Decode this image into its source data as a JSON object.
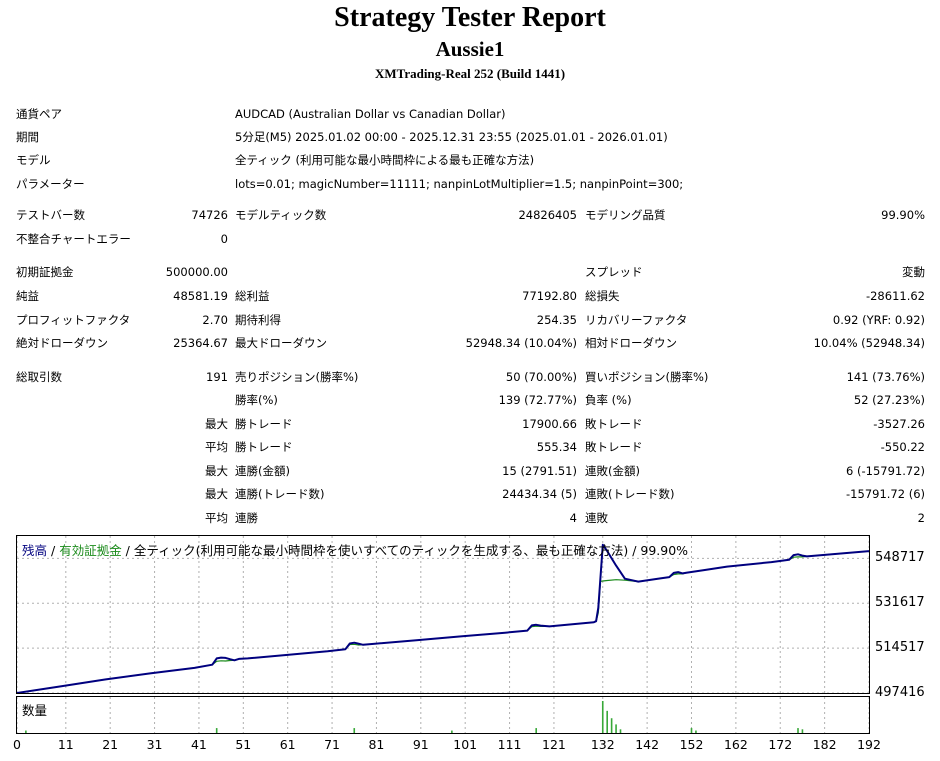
{
  "header": {
    "title": "Strategy Tester Report",
    "ea": "Aussie1",
    "server": "XMTrading-Real 252 (Build 1441)"
  },
  "info": [
    {
      "label": "通貨ペア",
      "value": "AUDCAD (Australian Dollar vs Canadian Dollar)"
    },
    {
      "label": "期間",
      "value": "5分足(M5) 2025.01.02 00:00 - 2025.12.31 23:55 (2025.01.01 - 2026.01.01)"
    },
    {
      "label": "モデル",
      "value": "全ティック (利用可能な最小時間枠による最も正確な方法)"
    },
    {
      "label": "パラメーター",
      "value": "lots=0.01; magicNumber=11111; nanpinLotMultiplier=1.5; nanpinPoint=300;"
    }
  ],
  "stats": {
    "bars_label": "テストバー数",
    "bars": "74726",
    "ticks_label": "モデルティック数",
    "ticks": "24826405",
    "quality_label": "モデリング品質",
    "quality": "99.90%",
    "mismatch_label": "不整合チャートエラー",
    "mismatch": "0",
    "deposit_label": "初期証拠金",
    "deposit": "500000.00",
    "spread_label": "スプレッド",
    "spread": "変動",
    "net_label": "純益",
    "net": "48581.19",
    "gross_profit_label": "総利益",
    "gross_profit": "77192.80",
    "gross_loss_label": "総損失",
    "gross_loss": "-28611.62",
    "pf_label": "プロフィットファクタ",
    "pf": "2.70",
    "expected_label": "期待利得",
    "expected": "254.35",
    "recovery_label": "リカバリーファクタ",
    "recovery": "0.92 (YRF: 0.92)",
    "abs_dd_label": "絶対ドローダウン",
    "abs_dd": "25364.67",
    "max_dd_label": "最大ドローダウン",
    "max_dd": "52948.34 (10.04%)",
    "rel_dd_label": "相対ドローダウン",
    "rel_dd": "10.04% (52948.34)",
    "trades_label": "総取引数",
    "trades": "191",
    "short_label": "売りポジション(勝率%)",
    "short": "50 (70.00%)",
    "long_label": "買いポジション(勝率%)",
    "long": "141 (73.76%)",
    "win_pct_label": "勝率(%)",
    "win_pct": "139 (72.77%)",
    "loss_pct_label": "負率 (%)",
    "loss_pct": "52 (27.23%)",
    "max_label": "最大",
    "avg_label": "平均",
    "largest_win_label": "勝トレード",
    "largest_win": "17900.66",
    "largest_loss_label": "敗トレード",
    "largest_loss": "-3527.26",
    "avg_win_label": "勝トレード",
    "avg_win": "555.34",
    "avg_loss_label": "敗トレード",
    "avg_loss": "-550.22",
    "cons_wins_money_label": "連勝(金額)",
    "cons_wins_money": "15 (2791.51)",
    "cons_losses_money_label": "連敗(金額)",
    "cons_losses_money": "6 (-15791.72)",
    "cons_wins_count_label": "連勝(トレード数)",
    "cons_wins_count": "24434.34 (5)",
    "cons_losses_count_label": "連敗(トレード数)",
    "cons_losses_count": "-15791.72 (6)",
    "avg_cons_wins_label": "連勝",
    "avg_cons_wins": "4",
    "avg_cons_losses_label": "連敗",
    "avg_cons_losses": "2"
  },
  "chart_legend": {
    "balance": "残高",
    "sep1": " / ",
    "equity": "有効証拠金",
    "rest": " / 全ティック(利用可能な最小時間枠を使いすべてのティックを生成する、最も正確な方法) / 99.90%",
    "volume": "数量"
  },
  "colors": {
    "balance": "#00007f",
    "equity": "#1a8a1a",
    "volume": "#38a838",
    "grid": "#b0b0b0"
  },
  "chart_data": {
    "type": "line",
    "y_ticks": [
      "548717",
      "531617",
      "514517",
      "497416"
    ],
    "x_ticks": [
      "0",
      "11",
      "21",
      "31",
      "41",
      "51",
      "61",
      "71",
      "81",
      "91",
      "101",
      "111",
      "121",
      "132",
      "142",
      "152",
      "162",
      "172",
      "182",
      "192"
    ],
    "xlim": [
      0,
      192
    ],
    "ylim": [
      497416,
      557267
    ],
    "series": [
      {
        "name": "残高",
        "x": [
          0,
          10,
          20,
          30,
          40,
          44,
          45,
          46,
          47,
          48,
          49,
          50,
          52,
          60,
          70,
          74,
          75,
          76,
          77,
          78,
          80,
          90,
          100,
          110,
          115,
          116,
          117,
          118,
          120,
          130,
          130.5,
          131,
          132,
          133,
          135,
          137,
          140,
          145,
          147,
          148,
          149,
          150,
          151,
          155,
          160,
          170,
          174,
          175,
          176,
          177,
          178,
          180,
          192
        ],
        "y": [
          497416,
          500000,
          502600,
          504900,
          507000,
          508200,
          510600,
          510900,
          510800,
          510300,
          509900,
          510400,
          510600,
          511800,
          513300,
          514100,
          516300,
          516600,
          516200,
          515800,
          516100,
          517500,
          519000,
          520400,
          521200,
          523200,
          523400,
          523100,
          522800,
          524400,
          524800,
          529900,
          553900,
          551500,
          546000,
          541000,
          539900,
          541100,
          541600,
          543200,
          543500,
          543000,
          543300,
          544300,
          545600,
          547300,
          548200,
          550000,
          550300,
          549800,
          549500,
          549800,
          551500
        ]
      },
      {
        "name": "有効証拠金",
        "x": [
          0,
          10,
          20,
          30,
          40,
          44,
          45,
          46,
          47,
          48,
          49,
          50,
          52,
          60,
          70,
          74,
          75,
          76,
          77,
          78,
          80,
          90,
          100,
          110,
          115,
          116,
          117,
          118,
          120,
          130,
          130.5,
          131,
          131.5,
          132,
          133,
          135,
          137,
          140,
          145,
          147,
          148,
          149,
          150,
          151,
          155,
          160,
          170,
          174,
          175,
          176,
          177,
          178,
          180,
          192
        ],
        "y": [
          497416,
          500000,
          502600,
          504900,
          507000,
          508200,
          509500,
          509700,
          509600,
          509800,
          509900,
          510400,
          510600,
          511800,
          513300,
          514100,
          515900,
          516000,
          515700,
          515800,
          516100,
          517500,
          519000,
          520400,
          521200,
          522700,
          522900,
          522800,
          522800,
          524400,
          524800,
          528000,
          540000,
          540100,
          540300,
          540600,
          540400,
          539900,
          541100,
          541600,
          542600,
          542800,
          542800,
          543300,
          544300,
          545600,
          547300,
          548200,
          549200,
          549300,
          549300,
          549500,
          549800,
          551500
        ]
      }
    ],
    "volume": {
      "x": [
        2,
        45,
        76,
        98,
        117,
        132,
        133,
        134,
        135,
        136,
        152,
        153,
        176,
        177
      ],
      "v": [
        2,
        4,
        4,
        2,
        4,
        26,
        18,
        12,
        7,
        3,
        4,
        2,
        4,
        3
      ]
    }
  }
}
